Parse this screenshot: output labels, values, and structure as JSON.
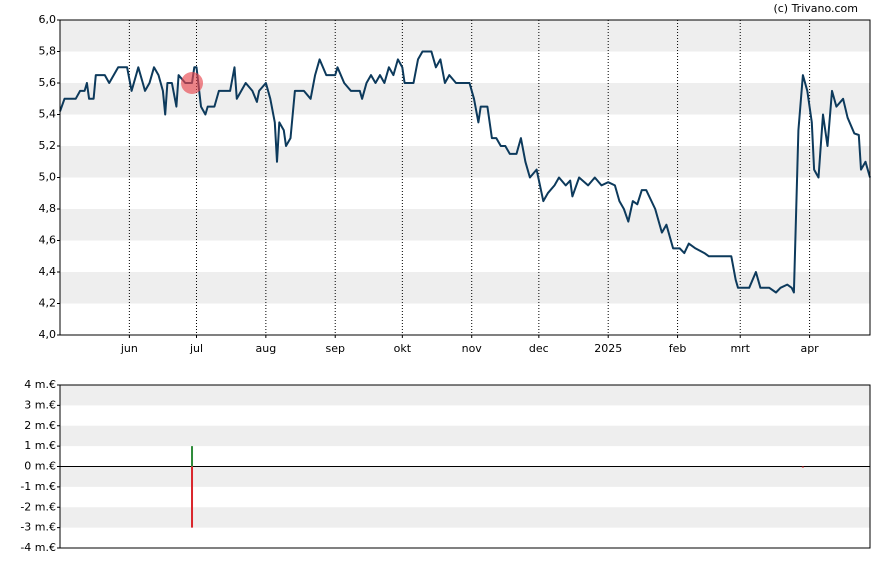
{
  "copyright": "(c) Trivano.com",
  "chart_data": [
    {
      "type": "line",
      "xlim": [
        0,
        362
      ],
      "xticks": [
        {
          "value": 31,
          "label": "jun"
        },
        {
          "value": 61,
          "label": "jul"
        },
        {
          "value": 92,
          "label": "aug"
        },
        {
          "value": 123,
          "label": "sep"
        },
        {
          "value": 153,
          "label": "okt"
        },
        {
          "value": 184,
          "label": "nov"
        },
        {
          "value": 214,
          "label": "dec"
        },
        {
          "value": 245,
          "label": "2025"
        },
        {
          "value": 276,
          "label": "feb"
        },
        {
          "value": 304,
          "label": "mrt"
        },
        {
          "value": 335,
          "label": "apr"
        }
      ],
      "ylim": [
        4.0,
        6.0
      ],
      "yticks": [
        {
          "value": 4.0,
          "label": "4,0"
        },
        {
          "value": 4.2,
          "label": "4,2"
        },
        {
          "value": 4.4,
          "label": "4,4"
        },
        {
          "value": 4.6,
          "label": "4,6"
        },
        {
          "value": 4.8,
          "label": "4,8"
        },
        {
          "value": 5.0,
          "label": "5,0"
        },
        {
          "value": 5.2,
          "label": "5,2"
        },
        {
          "value": 5.4,
          "label": "5,4"
        },
        {
          "value": 5.6,
          "label": "5,6"
        },
        {
          "value": 5.8,
          "label": "5,8"
        },
        {
          "value": 6.0,
          "label": "6,0"
        }
      ],
      "grid": true,
      "series": [
        {
          "color": "#0d3a5c",
          "x": [
            0,
            2,
            7,
            9,
            11,
            12,
            13,
            15,
            16,
            20,
            22,
            26,
            30,
            32,
            34,
            35,
            37,
            38,
            40,
            42,
            44,
            46,
            47,
            48,
            50,
            52,
            53,
            56,
            59,
            60,
            61,
            63,
            65,
            66,
            69,
            71,
            76,
            78,
            79,
            83,
            86,
            88,
            89,
            92,
            94,
            96,
            97,
            98,
            100,
            101,
            103,
            105,
            109,
            112,
            114,
            116,
            119,
            123,
            124,
            127,
            130,
            134,
            135,
            137,
            139,
            141,
            143,
            145,
            147,
            149,
            151,
            153,
            154,
            158,
            160,
            162,
            166,
            168,
            170,
            172,
            174,
            177,
            183,
            185,
            187,
            188,
            191,
            193,
            195,
            197,
            199,
            201,
            204,
            206,
            208,
            210,
            213,
            216,
            218,
            221,
            223,
            226,
            228,
            229,
            232,
            236,
            239,
            242,
            245,
            248,
            250,
            252,
            254,
            256,
            258,
            260,
            262,
            266,
            269,
            271,
            274,
            277,
            279,
            281,
            284,
            288,
            290,
            297,
            300,
            302,
            303,
            308,
            311,
            313,
            317,
            320,
            322,
            325,
            327,
            328,
            330,
            332,
            334,
            336,
            337,
            339,
            341,
            343,
            345,
            347,
            350,
            352,
            355,
            357,
            358,
            360,
            362
          ],
          "values": [
            5.42,
            5.5,
            5.5,
            5.55,
            5.55,
            5.6,
            5.5,
            5.5,
            5.65,
            5.65,
            5.6,
            5.7,
            5.7,
            5.55,
            5.65,
            5.7,
            5.6,
            5.55,
            5.6,
            5.7,
            5.65,
            5.55,
            5.4,
            5.6,
            5.6,
            5.45,
            5.65,
            5.6,
            5.6,
            5.7,
            5.7,
            5.45,
            5.4,
            5.45,
            5.45,
            5.55,
            5.55,
            5.7,
            5.5,
            5.6,
            5.55,
            5.48,
            5.55,
            5.6,
            5.5,
            5.35,
            5.1,
            5.35,
            5.3,
            5.2,
            5.25,
            5.55,
            5.55,
            5.5,
            5.65,
            5.75,
            5.65,
            5.65,
            5.7,
            5.6,
            5.55,
            5.55,
            5.5,
            5.6,
            5.65,
            5.6,
            5.65,
            5.6,
            5.7,
            5.65,
            5.75,
            5.7,
            5.6,
            5.6,
            5.75,
            5.8,
            5.8,
            5.7,
            5.75,
            5.6,
            5.65,
            5.6,
            5.6,
            5.5,
            5.35,
            5.45,
            5.45,
            5.25,
            5.25,
            5.2,
            5.2,
            5.15,
            5.15,
            5.25,
            5.1,
            5.0,
            5.05,
            4.85,
            4.9,
            4.95,
            5.0,
            4.95,
            4.98,
            4.88,
            5.0,
            4.95,
            5.0,
            4.95,
            4.97,
            4.95,
            4.85,
            4.8,
            4.72,
            4.85,
            4.83,
            4.92,
            4.92,
            4.8,
            4.65,
            4.7,
            4.55,
            4.55,
            4.52,
            4.58,
            4.55,
            4.52,
            4.5,
            4.5,
            4.5,
            4.35,
            4.3,
            4.3,
            4.4,
            4.3,
            4.3,
            4.27,
            4.3,
            4.32,
            4.3,
            4.27,
            5.3,
            5.65,
            5.55,
            5.35,
            5.05,
            5.0,
            5.4,
            5.2,
            5.55,
            5.45,
            5.5,
            5.38,
            5.28,
            5.27,
            5.05,
            5.1,
            5.0
          ]
        }
      ],
      "marker": {
        "x": 59,
        "y": 5.6,
        "color": "#e8474f"
      }
    },
    {
      "type": "bar",
      "xlim": [
        0,
        362
      ],
      "ylim": [
        -4,
        4
      ],
      "yticks": [
        {
          "value": -4,
          "label": "-4 m.€"
        },
        {
          "value": -3,
          "label": "-3 m.€"
        },
        {
          "value": -2,
          "label": "-2 m.€"
        },
        {
          "value": -1,
          "label": "-1 m.€"
        },
        {
          "value": 0,
          "label": "0 m.€"
        },
        {
          "value": 1,
          "label": "1 m.€"
        },
        {
          "value": 2,
          "label": "2 m.€"
        },
        {
          "value": 3,
          "label": "3 m.€"
        },
        {
          "value": 4,
          "label": "4 m.€"
        }
      ],
      "grid": true,
      "x": [
        59,
        59,
        332
      ],
      "values": [
        1,
        -3,
        -0.05
      ],
      "colors": [
        "#2e8b3a",
        "#d9262c",
        "#d9262c"
      ]
    }
  ]
}
